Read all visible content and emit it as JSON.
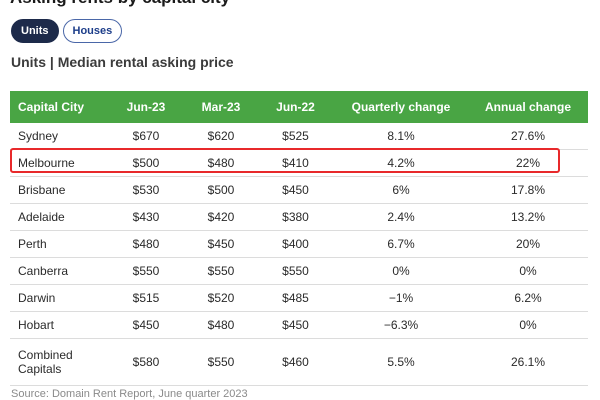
{
  "title": "Asking rents by capital city",
  "toggle": {
    "units_label": "Units",
    "houses_label": "Houses"
  },
  "subtitle": "Units | Median rental asking price",
  "source": "Source: Domain Rent Report, June quarter 2023",
  "colors": {
    "header_bg": "#49a544",
    "active_pill": "#1d2a4a",
    "highlight_border": "#e8292b"
  },
  "chart_data": {
    "type": "table",
    "title": "Units | Median rental asking price",
    "columns": [
      "Capital City",
      "Jun-23",
      "Mar-23",
      "Jun-22",
      "Quarterly change",
      "Annual change"
    ],
    "rows": [
      [
        "Sydney",
        "$670",
        "$620",
        "$525",
        "8.1%",
        "27.6%"
      ],
      [
        "Melbourne",
        "$500",
        "$480",
        "$410",
        "4.2%",
        "22%"
      ],
      [
        "Brisbane",
        "$530",
        "$500",
        "$450",
        "6%",
        "17.8%"
      ],
      [
        "Adelaide",
        "$430",
        "$420",
        "$380",
        "2.4%",
        "13.2%"
      ],
      [
        "Perth",
        "$480",
        "$450",
        "$400",
        "6.7%",
        "20%"
      ],
      [
        "Canberra",
        "$550",
        "$550",
        "$550",
        "0%",
        "0%"
      ],
      [
        "Darwin",
        "$515",
        "$520",
        "$485",
        "−1%",
        "6.2%"
      ],
      [
        "Hobart",
        "$450",
        "$480",
        "$450",
        "−6.3%",
        "0%"
      ],
      [
        "Combined Capitals",
        "$580",
        "$550",
        "$460",
        "5.5%",
        "26.1%"
      ]
    ],
    "highlighted_row": "Melbourne"
  }
}
